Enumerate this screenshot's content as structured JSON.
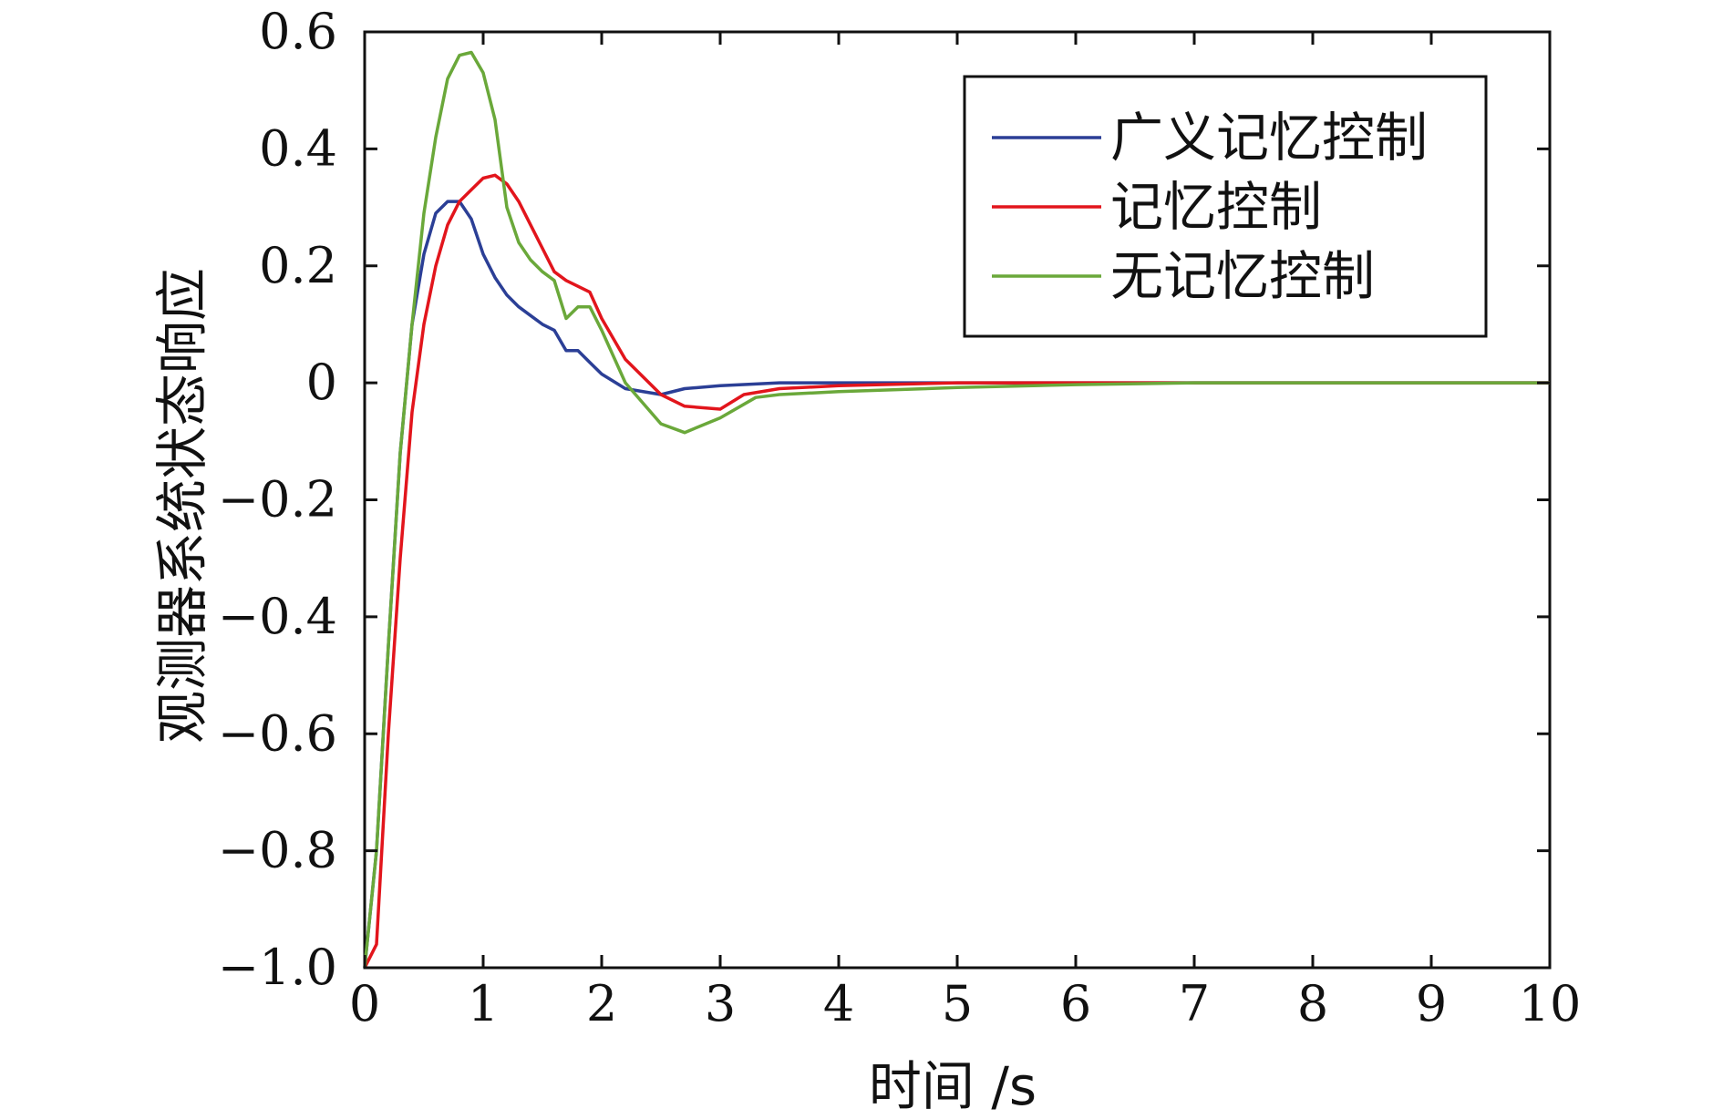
{
  "chart_data": {
    "type": "line",
    "xlabel": "时间 /s",
    "ylabel": "观测器系统状态响应",
    "xlim": [
      0,
      10
    ],
    "ylim": [
      -1.0,
      0.6
    ],
    "xticks": [
      0,
      1,
      2,
      3,
      4,
      5,
      6,
      7,
      8,
      9,
      10
    ],
    "xtick_labels": [
      "0",
      "1",
      "2",
      "3",
      "4",
      "5",
      "6",
      "7",
      "8",
      "9",
      "10"
    ],
    "yticks": [
      0.6,
      0.4,
      0.2,
      0,
      -0.2,
      -0.4,
      -0.6,
      -0.8,
      -1.0
    ],
    "ytick_labels": [
      "0.6",
      "0.4",
      "0.2",
      "0",
      "−0.2",
      "−0.4",
      "−0.6",
      "−0.8",
      "−1.0"
    ],
    "grid": false,
    "legend_position": "top-right",
    "series": [
      {
        "name": "广义记忆控制",
        "color": "#2b3f96",
        "x": [
          0,
          0.1,
          0.2,
          0.3,
          0.4,
          0.5,
          0.6,
          0.7,
          0.8,
          0.9,
          1.0,
          1.1,
          1.2,
          1.3,
          1.4,
          1.5,
          1.6,
          1.7,
          1.8,
          1.9,
          2.0,
          2.2,
          2.5,
          2.7,
          3.0,
          3.5,
          4,
          5,
          6,
          7,
          8,
          9,
          10
        ],
        "y": [
          -1.0,
          -0.8,
          -0.45,
          -0.12,
          0.1,
          0.22,
          0.29,
          0.31,
          0.31,
          0.28,
          0.22,
          0.18,
          0.15,
          0.13,
          0.115,
          0.1,
          0.09,
          0.055,
          0.055,
          0.035,
          0.015,
          -0.01,
          -0.02,
          -0.01,
          -0.005,
          0,
          0,
          0,
          0,
          0,
          0,
          0,
          0
        ]
      },
      {
        "name": "记忆控制",
        "color": "#e2151c",
        "x": [
          0,
          0.1,
          0.2,
          0.3,
          0.4,
          0.5,
          0.6,
          0.7,
          0.8,
          0.9,
          1.0,
          1.1,
          1.2,
          1.3,
          1.4,
          1.5,
          1.6,
          1.7,
          1.8,
          1.9,
          2.0,
          2.2,
          2.5,
          2.7,
          3.0,
          3.2,
          3.5,
          4,
          5,
          6,
          7,
          8,
          9,
          10
        ],
        "y": [
          -1.0,
          -0.96,
          -0.6,
          -0.3,
          -0.05,
          0.1,
          0.2,
          0.27,
          0.31,
          0.33,
          0.35,
          0.355,
          0.34,
          0.31,
          0.27,
          0.23,
          0.19,
          0.175,
          0.165,
          0.155,
          0.11,
          0.04,
          -0.02,
          -0.04,
          -0.045,
          -0.02,
          -0.01,
          -0.005,
          0,
          0,
          0,
          0,
          0,
          0
        ]
      },
      {
        "name": "无记忆控制",
        "color": "#6aa83a",
        "x": [
          0,
          0.1,
          0.2,
          0.3,
          0.4,
          0.5,
          0.6,
          0.7,
          0.8,
          0.9,
          1.0,
          1.1,
          1.2,
          1.3,
          1.4,
          1.5,
          1.6,
          1.7,
          1.8,
          1.9,
          2.0,
          2.2,
          2.5,
          2.7,
          3.0,
          3.3,
          3.5,
          4,
          5,
          6,
          7,
          8,
          9,
          10
        ],
        "y": [
          -1.0,
          -0.8,
          -0.45,
          -0.12,
          0.1,
          0.29,
          0.42,
          0.52,
          0.56,
          0.565,
          0.53,
          0.45,
          0.3,
          0.24,
          0.21,
          0.19,
          0.175,
          0.11,
          0.13,
          0.13,
          0.09,
          0.0,
          -0.07,
          -0.085,
          -0.06,
          -0.025,
          -0.02,
          -0.015,
          -0.008,
          -0.003,
          0,
          0,
          0,
          0
        ]
      }
    ]
  }
}
